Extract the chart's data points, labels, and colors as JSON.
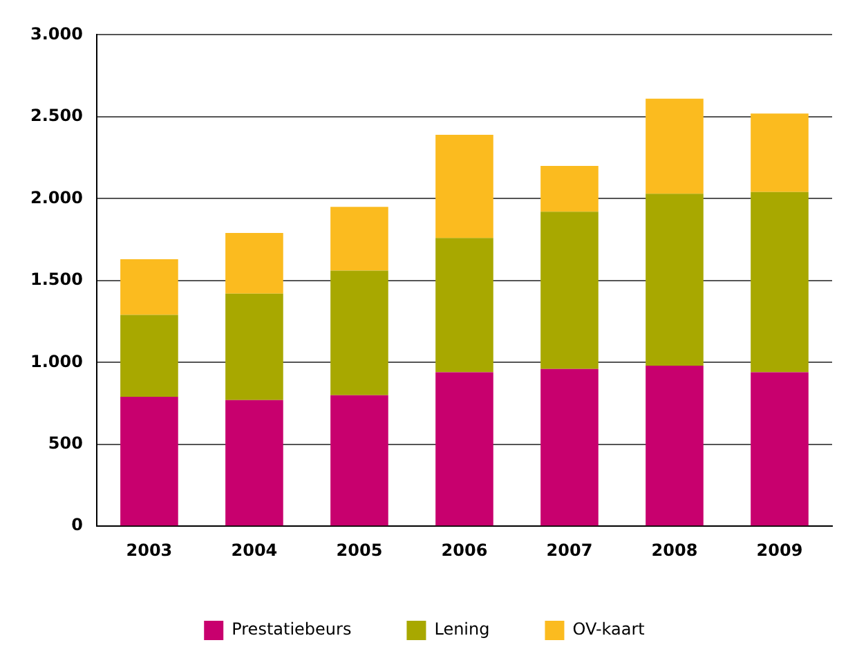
{
  "chart_data": {
    "type": "bar",
    "stacked": true,
    "categories": [
      "2003",
      "2004",
      "2005",
      "2006",
      "2007",
      "2008",
      "2009"
    ],
    "series": [
      {
        "name": "Prestatiebeurs",
        "color": "#c8006e",
        "values": [
          790,
          770,
          800,
          940,
          960,
          980,
          940
        ]
      },
      {
        "name": "Lening",
        "color": "#a8a800",
        "values": [
          500,
          650,
          760,
          820,
          960,
          1050,
          1100
        ]
      },
      {
        "name": "OV-kaart",
        "color": "#fbbb1f",
        "values": [
          340,
          370,
          390,
          630,
          280,
          580,
          480
        ]
      }
    ],
    "ylim": [
      0,
      3000
    ],
    "yticks": [
      {
        "value": 0,
        "label": "0"
      },
      {
        "value": 500,
        "label": "500"
      },
      {
        "value": 1000,
        "label": "1.000"
      },
      {
        "value": 1500,
        "label": "1.500"
      },
      {
        "value": 2000,
        "label": "2.000"
      },
      {
        "value": 2500,
        "label": "2.500"
      },
      {
        "value": 3000,
        "label": "3.000"
      }
    ],
    "grid": "y",
    "legend": "bottom"
  }
}
